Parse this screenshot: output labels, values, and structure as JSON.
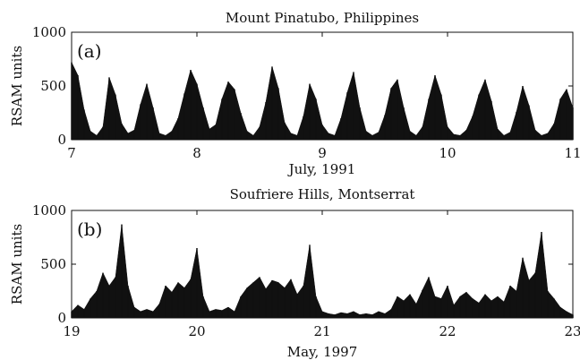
{
  "chart_data": [
    {
      "type": "area",
      "title": "Mount Pinatubo, Philippines",
      "panel_label": "(a)",
      "xlabel": "July, 1991",
      "ylabel": "RSAM units",
      "xlim": [
        7,
        11
      ],
      "ylim": [
        0,
        1000
      ],
      "xticks": [
        7,
        8,
        9,
        10,
        11
      ],
      "yticks": [
        0,
        500,
        1000
      ],
      "grid": false,
      "color": "#111111",
      "x": [
        7.0,
        7.05,
        7.1,
        7.15,
        7.2,
        7.25,
        7.3,
        7.35,
        7.4,
        7.45,
        7.5,
        7.55,
        7.6,
        7.65,
        7.7,
        7.75,
        7.8,
        7.85,
        7.9,
        7.95,
        8.0,
        8.05,
        8.1,
        8.15,
        8.2,
        8.25,
        8.3,
        8.35,
        8.4,
        8.45,
        8.5,
        8.55,
        8.6,
        8.65,
        8.7,
        8.75,
        8.8,
        8.85,
        8.9,
        8.95,
        9.0,
        9.05,
        9.1,
        9.15,
        9.2,
        9.25,
        9.3,
        9.35,
        9.4,
        9.45,
        9.5,
        9.55,
        9.6,
        9.65,
        9.7,
        9.75,
        9.8,
        9.85,
        9.9,
        9.95,
        10.0,
        10.05,
        10.1,
        10.15,
        10.2,
        10.25,
        10.3,
        10.35,
        10.4,
        10.45,
        10.5,
        10.55,
        10.6,
        10.65,
        10.7,
        10.75,
        10.8,
        10.85,
        10.9,
        10.95,
        11.0
      ],
      "values": [
        720,
        600,
        280,
        80,
        40,
        120,
        580,
        420,
        150,
        60,
        90,
        330,
        520,
        300,
        60,
        40,
        80,
        200,
        430,
        650,
        520,
        300,
        100,
        140,
        380,
        540,
        470,
        250,
        80,
        40,
        120,
        350,
        680,
        480,
        160,
        60,
        40,
        220,
        520,
        380,
        140,
        60,
        40,
        200,
        440,
        630,
        300,
        80,
        40,
        70,
        230,
        480,
        560,
        300,
        80,
        40,
        120,
        380,
        600,
        420,
        120,
        50,
        40,
        90,
        220,
        420,
        560,
        360,
        100,
        40,
        70,
        260,
        500,
        320,
        90,
        40,
        60,
        150,
        380,
        470,
        300
      ]
    },
    {
      "type": "area",
      "title": "Soufriere Hills, Montserrat",
      "panel_label": "(b)",
      "xlabel": "May, 1997",
      "ylabel": "RSAM units",
      "xlim": [
        19,
        23
      ],
      "ylim": [
        0,
        1000
      ],
      "xticks": [
        19,
        20,
        21,
        22,
        23
      ],
      "yticks": [
        0,
        500,
        1000
      ],
      "grid": false,
      "color": "#111111",
      "x": [
        19.0,
        19.05,
        19.1,
        19.15,
        19.2,
        19.25,
        19.3,
        19.35,
        19.4,
        19.45,
        19.5,
        19.55,
        19.6,
        19.65,
        19.7,
        19.75,
        19.8,
        19.85,
        19.9,
        19.95,
        20.0,
        20.05,
        20.1,
        20.15,
        20.2,
        20.25,
        20.3,
        20.35,
        20.4,
        20.45,
        20.5,
        20.55,
        20.6,
        20.65,
        20.7,
        20.75,
        20.8,
        20.85,
        20.9,
        20.95,
        21.0,
        21.05,
        21.1,
        21.15,
        21.2,
        21.25,
        21.3,
        21.35,
        21.4,
        21.45,
        21.5,
        21.55,
        21.6,
        21.65,
        21.7,
        21.75,
        21.8,
        21.85,
        21.9,
        21.95,
        22.0,
        22.05,
        22.1,
        22.15,
        22.2,
        22.25,
        22.3,
        22.35,
        22.4,
        22.45,
        22.5,
        22.55,
        22.6,
        22.65,
        22.7,
        22.75,
        22.8,
        22.85,
        22.9,
        22.95,
        23.0
      ],
      "values": [
        60,
        120,
        80,
        180,
        250,
        420,
        300,
        380,
        870,
        300,
        100,
        60,
        80,
        60,
        130,
        300,
        240,
        330,
        280,
        360,
        650,
        200,
        60,
        80,
        70,
        100,
        60,
        200,
        280,
        330,
        380,
        270,
        350,
        330,
        280,
        360,
        220,
        300,
        680,
        200,
        60,
        40,
        30,
        50,
        40,
        60,
        30,
        40,
        30,
        60,
        40,
        80,
        200,
        160,
        220,
        130,
        260,
        380,
        200,
        180,
        300,
        120,
        200,
        240,
        180,
        140,
        220,
        160,
        200,
        150,
        300,
        250,
        560,
        350,
        420,
        800,
        250,
        180,
        100,
        60,
        30
      ]
    }
  ]
}
